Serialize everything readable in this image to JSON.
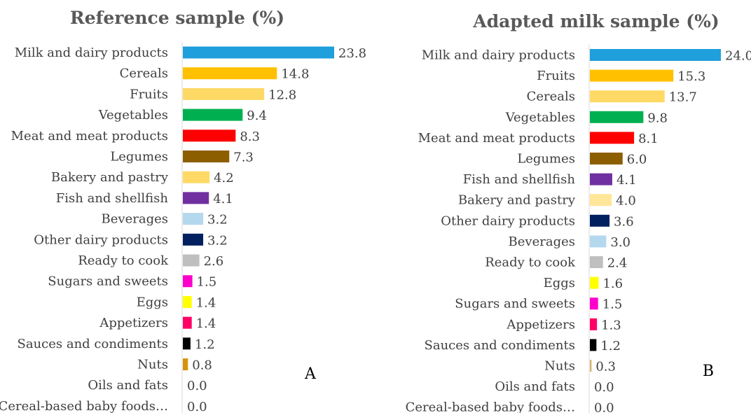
{
  "chart_data": [
    {
      "type": "bar",
      "orientation": "horizontal",
      "title": "Reference sample (%)",
      "panel_label": "A",
      "xlim": [
        0,
        24
      ],
      "categories": [
        "Milk and dairy products",
        "Cereals",
        "Fruits",
        "Vegetables",
        "Meat and meat products",
        "Legumes",
        "Bakery and pastry",
        "Fish and shellfish",
        "Beverages",
        "Other dairy products",
        "Ready to cook",
        "Sugars and sweets",
        "Eggs",
        "Appetizers",
        "Sauces and condiments",
        "Nuts",
        "Oils and fats",
        "Cereal-based baby foods…"
      ],
      "values": [
        23.8,
        14.8,
        12.8,
        9.4,
        8.3,
        7.3,
        4.2,
        4.1,
        3.2,
        3.2,
        2.6,
        1.5,
        1.4,
        1.4,
        1.2,
        0.8,
        0.0,
        0.0
      ],
      "value_labels": [
        "23.8",
        "14.8",
        "12.8",
        "9.4",
        "8.3",
        "7.3",
        "4.2",
        "4.1",
        "3.2",
        "3.2",
        "2.6",
        "1.5",
        "1.4",
        "1.4",
        "1.2",
        "0.8",
        "0.0",
        "0.0"
      ],
      "colors": [
        "#1f9fdc",
        "#ffc000",
        "#ffd966",
        "#00b050",
        "#ff0000",
        "#8c5e00",
        "#ffd966",
        "#7030a0",
        "#b4d8ee",
        "#002060",
        "#bfbfbf",
        "#ff00cc",
        "#ffff00",
        "#ff0066",
        "#000000",
        "#d4940a",
        "#d4940a",
        "#d4940a"
      ]
    },
    {
      "type": "bar",
      "orientation": "horizontal",
      "title": "Adapted milk sample (%)",
      "panel_label": "B",
      "xlim": [
        0,
        24
      ],
      "categories": [
        "Milk and dairy products",
        "Fruits",
        "Cereals",
        "Vegetables",
        "Meat and meat products",
        "Legumes",
        "Fish and shellfish",
        "Bakery and pastry",
        "Other dairy products",
        "Beverages",
        "Ready to cook",
        "Eggs",
        "Sugars and sweets",
        "Appetizers",
        "Sauces and condiments",
        "Nuts",
        "Oils and fats",
        "Cereal-based baby foods…"
      ],
      "values": [
        24.0,
        15.3,
        13.7,
        9.8,
        8.1,
        6.0,
        4.1,
        4.0,
        3.6,
        3.0,
        2.4,
        1.6,
        1.5,
        1.3,
        1.2,
        0.3,
        0.0,
        0.0
      ],
      "value_labels": [
        "24.0",
        "15.3",
        "13.7",
        "9.8",
        "8.1",
        "6.0",
        "4.1",
        "4.0",
        "3.6",
        "3.0",
        "2.4",
        "1.6",
        "1.5",
        "1.3",
        "1.2",
        "0.3",
        "0.0",
        "0.0"
      ],
      "colors": [
        "#1f9fdc",
        "#ffc000",
        "#ffd966",
        "#00b050",
        "#ff0000",
        "#8c5e00",
        "#7030a0",
        "#ffe699",
        "#002060",
        "#b4d8ee",
        "#bfbfbf",
        "#ffff00",
        "#ff00cc",
        "#ff0066",
        "#000000",
        "#d4b06a",
        "#d4b06a",
        "#d4b06a"
      ]
    }
  ]
}
